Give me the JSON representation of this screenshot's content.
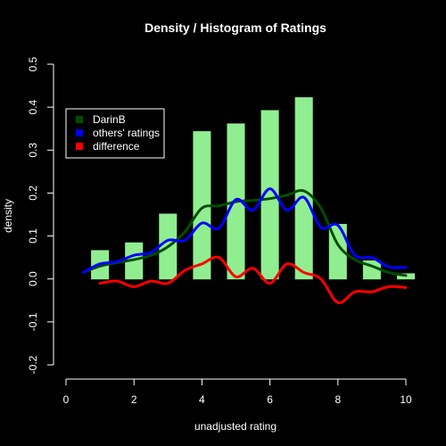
{
  "chart_data": {
    "type": "bar",
    "title": "Density / Histogram of Ratings",
    "xlabel": "unadjusted rating",
    "ylabel": "density",
    "xlim": [
      0,
      10
    ],
    "ylim": [
      -0.2,
      0.5
    ],
    "x_ticks": [
      "0",
      "2",
      "4",
      "6",
      "8",
      "10"
    ],
    "y_ticks": [
      "-0.2",
      "-0.1",
      "0.0",
      "0.1",
      "0.2",
      "0.3",
      "0.4",
      "0.5"
    ],
    "x_tick_values": [
      0,
      2,
      4,
      6,
      8,
      10
    ],
    "y_tick_values": [
      -0.2,
      -0.1,
      0.0,
      0.1,
      0.2,
      0.3,
      0.4,
      0.5
    ],
    "grid": false,
    "legend_position": "top-left",
    "colors": {
      "background": "#000000",
      "bars": "#90ee90",
      "darinb": "#004d00",
      "others": "#0000ff",
      "difference": "#ff0000",
      "axis": "#ffffff"
    },
    "bars": {
      "name": "histogram",
      "width": 0.5,
      "x": [
        1,
        2,
        3,
        4,
        5,
        6,
        7,
        8,
        9,
        10
      ],
      "values": [
        0.066,
        0.084,
        0.151,
        0.343,
        0.361,
        0.392,
        0.422,
        0.127,
        0.042,
        0.012
      ]
    },
    "series": [
      {
        "name": "DarinB",
        "color": "#004d00",
        "x": [
          0.5,
          1.0,
          1.5,
          2.0,
          2.5,
          3.0,
          3.5,
          4.0,
          4.5,
          5.0,
          5.5,
          6.0,
          6.5,
          7.0,
          7.5,
          8.0,
          8.5,
          9.0,
          9.5,
          10.0
        ],
        "values": [
          0.015,
          0.03,
          0.038,
          0.045,
          0.055,
          0.075,
          0.11,
          0.165,
          0.17,
          0.18,
          0.183,
          0.187,
          0.195,
          0.205,
          0.165,
          0.08,
          0.045,
          0.03,
          0.015,
          0.008
        ]
      },
      {
        "name": "others' ratings",
        "color": "#0000ff",
        "x": [
          0.5,
          1.0,
          1.5,
          2.0,
          2.5,
          3.0,
          3.5,
          4.0,
          4.5,
          5.0,
          5.5,
          6.0,
          6.5,
          7.0,
          7.5,
          8.0,
          8.5,
          9.0,
          9.5,
          10.0
        ],
        "values": [
          0.015,
          0.035,
          0.04,
          0.055,
          0.062,
          0.09,
          0.09,
          0.13,
          0.118,
          0.185,
          0.16,
          0.21,
          0.16,
          0.19,
          0.12,
          0.125,
          0.055,
          0.05,
          0.028,
          0.027
        ]
      },
      {
        "name": "difference",
        "color": "#ff0000",
        "x": [
          1.0,
          1.5,
          2.0,
          2.5,
          3.0,
          3.5,
          4.0,
          4.5,
          5.0,
          5.5,
          6.0,
          6.5,
          7.0,
          7.5,
          8.0,
          8.5,
          9.0,
          9.5,
          10.0
        ],
        "values": [
          -0.01,
          -0.005,
          -0.018,
          -0.005,
          -0.01,
          0.02,
          0.035,
          0.05,
          0.005,
          0.025,
          -0.01,
          0.035,
          0.015,
          0.0,
          -0.055,
          -0.03,
          -0.03,
          -0.018,
          -0.02
        ]
      }
    ]
  }
}
